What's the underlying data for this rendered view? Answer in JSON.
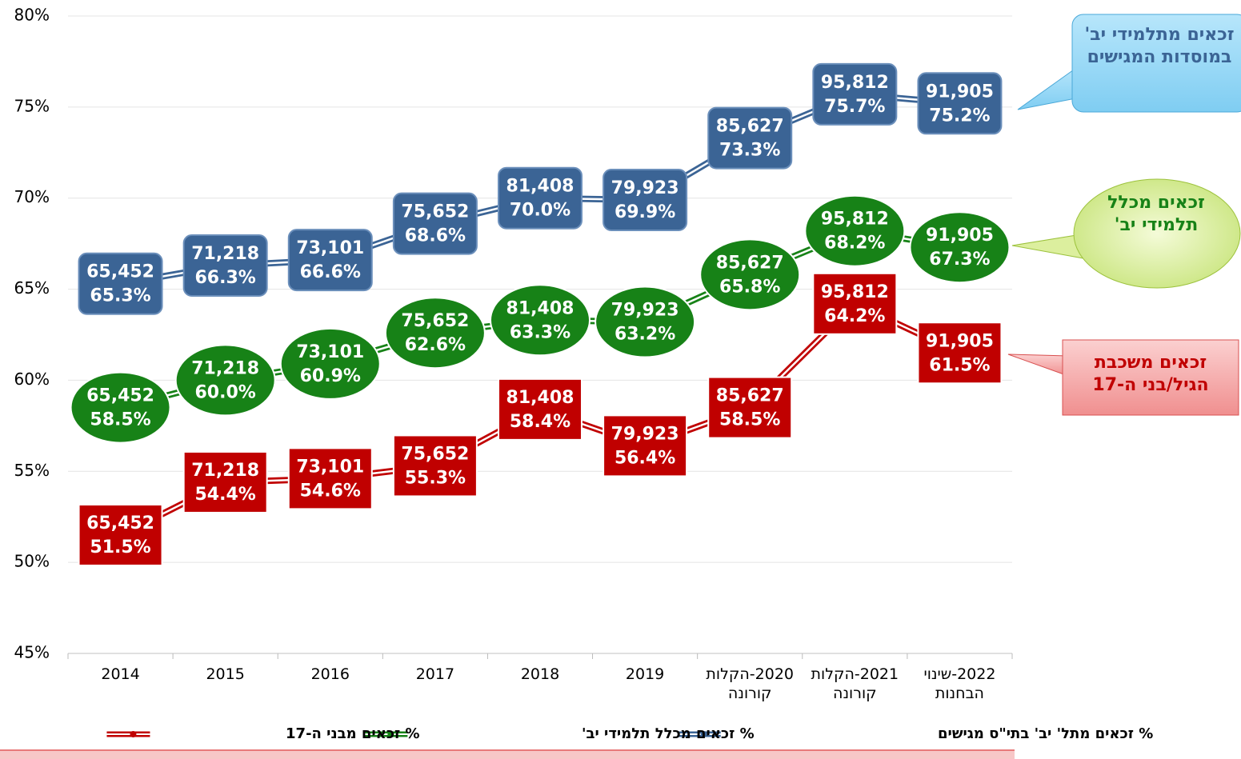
{
  "chart_data": {
    "type": "line",
    "categories": [
      "2014",
      "2015",
      "2016",
      "2017",
      "2018",
      "2019",
      "2020-הקלות קורונה",
      "2021-הקלות קורונה",
      "2022-שינוי הבחנות"
    ],
    "count_labels": [
      "65,452",
      "71,218",
      "73,101",
      "75,652",
      "81,408",
      "79,923",
      "85,627",
      "95,812",
      "91,905"
    ],
    "series": [
      {
        "name": "% זכאים מתל' יב' בתי\"ס מגישים",
        "color": "#3b6495",
        "marker": "rounded-box",
        "values": [
          65.3,
          66.3,
          66.6,
          68.6,
          70.0,
          69.9,
          73.3,
          75.7,
          75.2
        ],
        "value_labels": [
          "65.3%",
          "66.3%",
          "66.6%",
          "68.6%",
          "70.0%",
          "69.9%",
          "73.3%",
          "75.7%",
          "75.2%"
        ]
      },
      {
        "name": "% זכאים מכלל תלמידי יב'",
        "color": "#178217",
        "marker": "ellipse",
        "values": [
          58.5,
          60.0,
          60.9,
          62.6,
          63.3,
          63.2,
          65.8,
          68.2,
          67.3
        ],
        "value_labels": [
          "58.5%",
          "60.0%",
          "60.9%",
          "62.6%",
          "63.3%",
          "63.2%",
          "65.8%",
          "68.2%",
          "67.3%"
        ]
      },
      {
        "name": "% זכאים מבני ה-17",
        "color": "#c00000",
        "marker": "box",
        "values": [
          51.5,
          54.4,
          54.6,
          55.3,
          58.4,
          56.4,
          58.5,
          64.2,
          61.5
        ],
        "value_labels": [
          "51.5%",
          "54.4%",
          "54.6%",
          "55.3%",
          "58.4%",
          "56.4%",
          "58.5%",
          "64.2%",
          "61.5%"
        ]
      }
    ],
    "ylim": [
      45,
      80
    ],
    "yticks": [
      {
        "value": 45,
        "label": "45%"
      },
      {
        "value": 50,
        "label": "50%"
      },
      {
        "value": 55,
        "label": "55%"
      },
      {
        "value": 60,
        "label": "60%"
      },
      {
        "value": 65,
        "label": "65%"
      },
      {
        "value": 70,
        "label": "70%"
      },
      {
        "value": 75,
        "label": "75%"
      },
      {
        "value": 80,
        "label": "80%"
      }
    ],
    "grid": true,
    "legend": "bottom",
    "annotations": [
      {
        "text": "זכאים מתלמידי יב' במוסדות המגישים",
        "color": "#3b6495"
      },
      {
        "text": "זכאים מכלל תלמידי יב'",
        "color": "#178217"
      },
      {
        "text": "זכאים משכבת הגיל/בני ה-17",
        "color": "#c00000"
      }
    ]
  }
}
